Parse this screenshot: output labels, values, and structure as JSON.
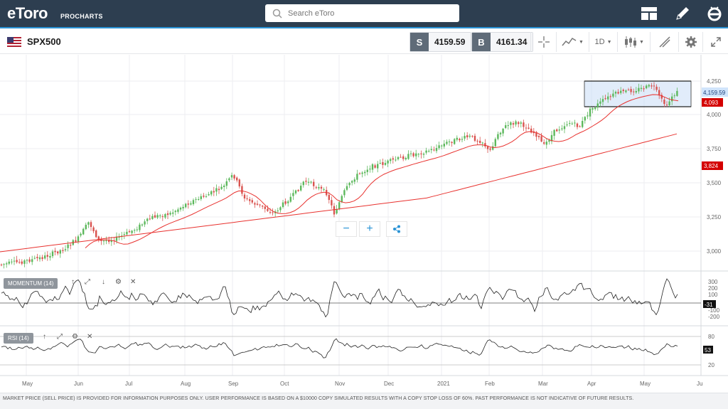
{
  "brand": {
    "logo_text": "eToro",
    "sub_text": "PROCHARTS"
  },
  "search": {
    "placeholder": "Search eToro"
  },
  "toolbar": {
    "symbol": "SPX500",
    "sell_label": "S",
    "sell_price": "4159.59",
    "buy_label": "B",
    "buy_price": "4161.34",
    "timeframe": "1D"
  },
  "price_axis": {
    "ticks": [
      "4,250",
      "4,000",
      "3,750",
      "3,500",
      "3,250",
      "3,000"
    ],
    "current_price_label": "4,159.59",
    "ma_short_label": "4,093",
    "ma_long_label": "3,824"
  },
  "momentum": {
    "label": "MOMENTUM (14)",
    "ticks": [
      "300",
      "200",
      "100",
      "-100",
      "-200"
    ],
    "current_label": "-31"
  },
  "rsi": {
    "label": "RSI (14)",
    "ticks": [
      "80",
      "20"
    ],
    "current_label": "53"
  },
  "time_axis": [
    "May",
    "Jun",
    "Jul",
    "Aug",
    "Sep",
    "Oct",
    "Nov",
    "Dec",
    "2021",
    "Feb",
    "Mar",
    "Apr",
    "May",
    "Ju"
  ],
  "zoom_controls": {
    "minus": "−",
    "plus": "+"
  },
  "disclaimer": "MARKET PRICE (SELL PRICE) IS PROVIDED FOR INFORMATION PURPOSES ONLY. USER PERFORMANCE IS BASED ON A $10000 COPY SIMULATED RESULTS WITH A COPY STOP LOSS OF 60%. PAST PERFORMANCE IS NOT INDICATIVE OF FUTURE RESULTS.",
  "colors": {
    "topbar": "#2d3e50",
    "up": "#5cb85c",
    "down": "#d9534f",
    "ma": "#e8322f",
    "accent": "#2a93d5"
  }
}
